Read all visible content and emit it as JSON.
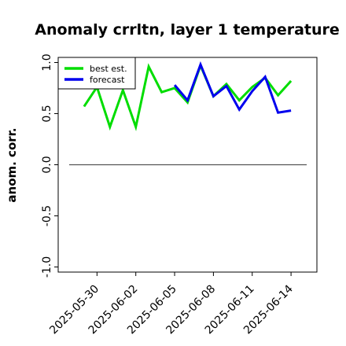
{
  "chart_data": {
    "type": "line",
    "title": "Anomaly crrltn, layer 1 temperature",
    "xlabel": "",
    "ylabel": "anom. corr.",
    "ylim": [
      -1.05,
      1.05
    ],
    "yticks": [
      -1.0,
      -0.5,
      0.0,
      0.5,
      1.0
    ],
    "ytick_labels": [
      "-1.0",
      "-0.5",
      "0.0",
      "0.5",
      "1.0"
    ],
    "xlim": [
      "2025-05-27",
      "2025-06-16"
    ],
    "xticks": [
      "2025-05-30",
      "2025-06-02",
      "2025-06-05",
      "2025-06-08",
      "2025-06-11",
      "2025-06-14"
    ],
    "xtick_label_colors": [
      "#000000",
      "#000000",
      "#228b22",
      "#000000",
      "#000000",
      "#000000"
    ],
    "grid": false,
    "reference_line": 0.0,
    "legend": {
      "placement": "top-left"
    },
    "x": [
      "2025-05-29",
      "2025-05-30",
      "2025-05-31",
      "2025-06-01",
      "2025-06-02",
      "2025-06-03",
      "2025-06-04",
      "2025-06-05",
      "2025-06-06",
      "2025-06-07",
      "2025-06-08",
      "2025-06-09",
      "2025-06-10",
      "2025-06-11",
      "2025-06-12",
      "2025-06-13",
      "2025-06-14"
    ],
    "series": [
      {
        "name": "best est.",
        "color": "#00dd00",
        "values": [
          0.57,
          0.76,
          0.37,
          0.73,
          0.37,
          0.96,
          0.71,
          0.75,
          0.61,
          0.97,
          0.67,
          0.79,
          0.63,
          0.76,
          0.85,
          0.68,
          0.82
        ]
      },
      {
        "name": "forecast",
        "color": "#0000ee",
        "values": [
          null,
          null,
          null,
          null,
          null,
          null,
          null,
          0.78,
          0.63,
          0.98,
          0.67,
          0.77,
          0.54,
          0.72,
          0.86,
          0.51,
          0.53
        ]
      }
    ]
  }
}
